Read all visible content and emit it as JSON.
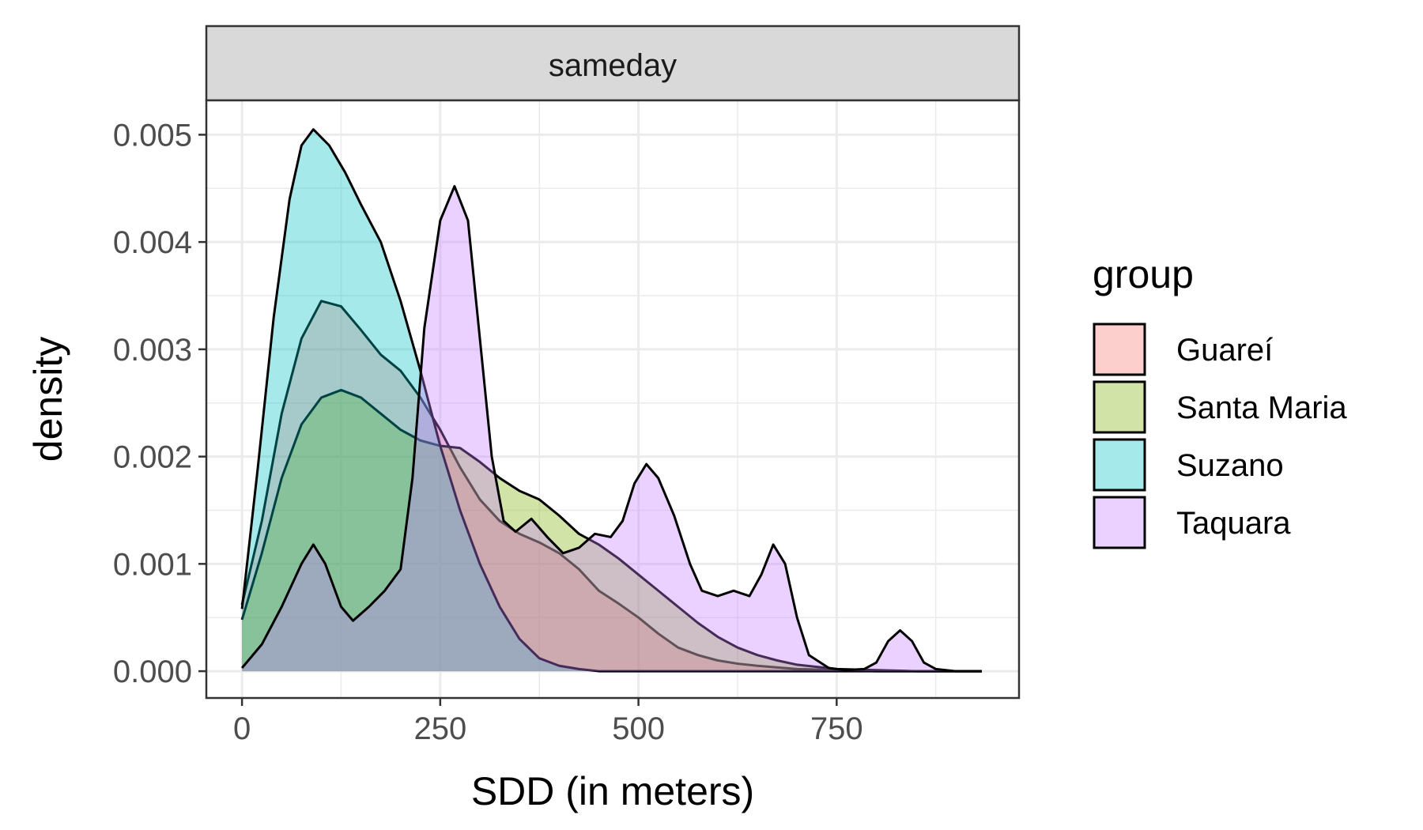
{
  "chart_data": {
    "type": "area",
    "facet": "sameday",
    "xlabel": "SDD (in meters)",
    "ylabel": "density",
    "xlim": [
      -45,
      980
    ],
    "ylim": [
      -0.00025,
      0.00532
    ],
    "x_ticks": [
      0,
      250,
      500,
      750
    ],
    "x_ticks_minor": [
      125,
      375,
      625,
      875
    ],
    "y_ticks": [
      0.0,
      0.001,
      0.002,
      0.003,
      0.004,
      0.005
    ],
    "y_tick_labels": [
      "0.000",
      "0.001",
      "0.002",
      "0.003",
      "0.004",
      "0.005"
    ],
    "y_ticks_minor": [
      0.0005,
      0.0015,
      0.0025,
      0.0035,
      0.0045
    ],
    "grid": true,
    "legend_title": "group",
    "legend_position": "right",
    "fill_opacity": 0.35,
    "series": [
      {
        "name": "Guareí",
        "color": "#F8766D",
        "points": [
          [
            0,
            0.00062
          ],
          [
            25,
            0.0014
          ],
          [
            50,
            0.0024
          ],
          [
            75,
            0.0031
          ],
          [
            100,
            0.00345
          ],
          [
            125,
            0.0034
          ],
          [
            150,
            0.00318
          ],
          [
            175,
            0.00295
          ],
          [
            200,
            0.0028
          ],
          [
            225,
            0.00255
          ],
          [
            250,
            0.00225
          ],
          [
            275,
            0.0019
          ],
          [
            300,
            0.0016
          ],
          [
            325,
            0.0014
          ],
          [
            350,
            0.00128
          ],
          [
            375,
            0.0012
          ],
          [
            400,
            0.0011
          ],
          [
            425,
            0.00095
          ],
          [
            450,
            0.00075
          ],
          [
            475,
            0.00063
          ],
          [
            500,
            0.0005
          ],
          [
            525,
            0.00035
          ],
          [
            550,
            0.00022
          ],
          [
            575,
            0.00015
          ],
          [
            600,
            0.0001
          ],
          [
            625,
            7e-05
          ],
          [
            650,
            5e-05
          ],
          [
            700,
            2e-05
          ],
          [
            750,
            1e-05
          ],
          [
            800,
            0.0
          ],
          [
            850,
            0.0
          ],
          [
            933,
            0.0
          ]
        ]
      },
      {
        "name": "Santa Maria",
        "color": "#7CAE00",
        "points": [
          [
            0,
            0.00048
          ],
          [
            25,
            0.0011
          ],
          [
            50,
            0.0018
          ],
          [
            75,
            0.0023
          ],
          [
            100,
            0.00255
          ],
          [
            125,
            0.00262
          ],
          [
            150,
            0.00255
          ],
          [
            175,
            0.0024
          ],
          [
            200,
            0.00225
          ],
          [
            225,
            0.00215
          ],
          [
            250,
            0.0021
          ],
          [
            275,
            0.00208
          ],
          [
            300,
            0.00195
          ],
          [
            325,
            0.0018
          ],
          [
            350,
            0.00168
          ],
          [
            375,
            0.0016
          ],
          [
            400,
            0.00145
          ],
          [
            425,
            0.00128
          ],
          [
            450,
            0.00118
          ],
          [
            475,
            0.00105
          ],
          [
            500,
            0.0009
          ],
          [
            525,
            0.00075
          ],
          [
            550,
            0.0006
          ],
          [
            575,
            0.00045
          ],
          [
            600,
            0.00032
          ],
          [
            625,
            0.00022
          ],
          [
            650,
            0.00015
          ],
          [
            675,
            0.0001
          ],
          [
            700,
            6e-05
          ],
          [
            750,
            2e-05
          ],
          [
            800,
            1e-05
          ],
          [
            850,
            0.0
          ],
          [
            933,
            0.0
          ]
        ]
      },
      {
        "name": "Suzano",
        "color": "#00BFC4",
        "points": [
          [
            0,
            0.00058
          ],
          [
            20,
            0.0019
          ],
          [
            40,
            0.0033
          ],
          [
            60,
            0.0044
          ],
          [
            75,
            0.0049
          ],
          [
            90,
            0.00505
          ],
          [
            110,
            0.0049
          ],
          [
            130,
            0.00465
          ],
          [
            150,
            0.00435
          ],
          [
            175,
            0.004
          ],
          [
            200,
            0.00345
          ],
          [
            225,
            0.0028
          ],
          [
            250,
            0.0021
          ],
          [
            275,
            0.0015
          ],
          [
            300,
            0.001
          ],
          [
            325,
            0.0006
          ],
          [
            350,
            0.0003
          ],
          [
            375,
            0.00012
          ],
          [
            400,
            5e-05
          ],
          [
            425,
            2e-05
          ],
          [
            450,
            0.0
          ],
          [
            500,
            0.0
          ],
          [
            600,
            0.0
          ],
          [
            700,
            0.0
          ],
          [
            800,
            0.0
          ],
          [
            933,
            0.0
          ]
        ]
      },
      {
        "name": "Taquara",
        "color": "#C77CFF",
        "points": [
          [
            0,
            3e-05
          ],
          [
            25,
            0.00025
          ],
          [
            50,
            0.0006
          ],
          [
            75,
            0.001
          ],
          [
            90,
            0.00118
          ],
          [
            105,
            0.001
          ],
          [
            125,
            0.0006
          ],
          [
            140,
            0.00047
          ],
          [
            160,
            0.0006
          ],
          [
            180,
            0.00075
          ],
          [
            200,
            0.00095
          ],
          [
            215,
            0.0018
          ],
          [
            230,
            0.0032
          ],
          [
            250,
            0.0042
          ],
          [
            268,
            0.00452
          ],
          [
            285,
            0.0042
          ],
          [
            300,
            0.0031
          ],
          [
            315,
            0.002
          ],
          [
            330,
            0.0014
          ],
          [
            345,
            0.0013
          ],
          [
            365,
            0.00142
          ],
          [
            385,
            0.00125
          ],
          [
            405,
            0.0011
          ],
          [
            425,
            0.00115
          ],
          [
            445,
            0.00128
          ],
          [
            465,
            0.00125
          ],
          [
            480,
            0.0014
          ],
          [
            495,
            0.00175
          ],
          [
            510,
            0.00193
          ],
          [
            525,
            0.0018
          ],
          [
            545,
            0.00145
          ],
          [
            565,
            0.001
          ],
          [
            580,
            0.00075
          ],
          [
            600,
            0.0007
          ],
          [
            620,
            0.00075
          ],
          [
            640,
            0.0007
          ],
          [
            655,
            0.0009
          ],
          [
            670,
            0.00118
          ],
          [
            685,
            0.001
          ],
          [
            700,
            0.0005
          ],
          [
            715,
            0.00015
          ],
          [
            740,
            3e-05
          ],
          [
            760,
            1e-05
          ],
          [
            785,
            2e-05
          ],
          [
            800,
            8e-05
          ],
          [
            815,
            0.00028
          ],
          [
            830,
            0.00038
          ],
          [
            845,
            0.00028
          ],
          [
            860,
            8e-05
          ],
          [
            875,
            2e-05
          ],
          [
            900,
            0.0
          ],
          [
            933,
            0.0
          ]
        ]
      }
    ]
  }
}
